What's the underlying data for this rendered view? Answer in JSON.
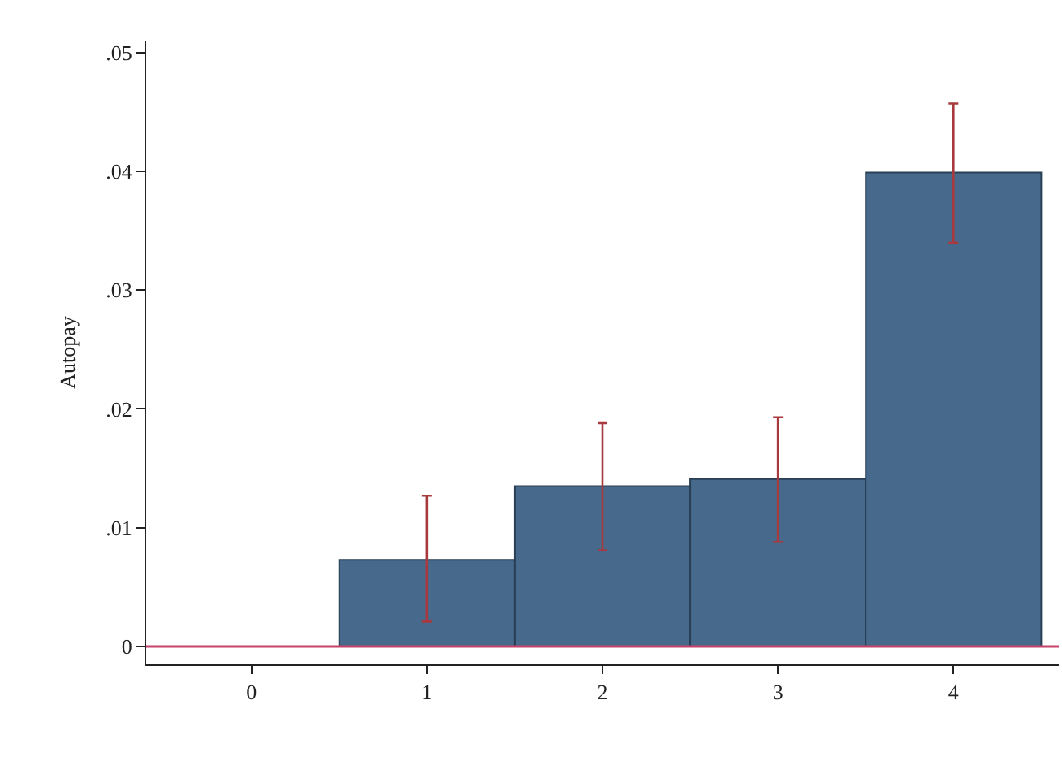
{
  "chart_data": {
    "type": "bar",
    "ylabel": "Autopay",
    "x": [
      0,
      1,
      2,
      3,
      4
    ],
    "values": [
      0,
      0.0073,
      0.0135,
      0.0141,
      0.0399
    ],
    "errors": [
      null,
      [
        0.0021,
        0.0127
      ],
      [
        0.0081,
        0.0188
      ],
      [
        0.0088,
        0.0193
      ],
      [
        0.034,
        0.0457
      ]
    ],
    "color": "#476a8c",
    "xlim": [
      -0.6,
      4.6
    ],
    "xticks": [
      0,
      1,
      2,
      3,
      4
    ],
    "ylim": [
      -0.0015,
      0.051
    ],
    "yticks": [
      {
        "value": 0,
        "label": "0"
      },
      {
        "value": 0.01,
        "label": ".01"
      },
      {
        "value": 0.02,
        "label": ".02"
      },
      {
        "value": 0.03,
        "label": ".03"
      },
      {
        "value": 0.04,
        "label": ".04"
      },
      {
        "value": 0.05,
        "label": ".05"
      }
    ],
    "ref_lines": [
      {
        "axis": "y",
        "value": 0,
        "color": "#c8436b"
      }
    ]
  }
}
